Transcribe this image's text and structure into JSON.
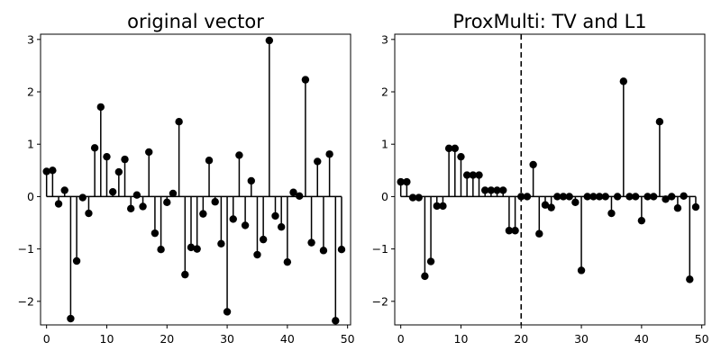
{
  "chart_data": [
    {
      "type": "stem",
      "title": "original vector",
      "xlabel": "",
      "ylabel": "",
      "xlim": [
        -1,
        50.5
      ],
      "ylim": [
        -2.45,
        3.1
      ],
      "xticks": [
        0,
        10,
        20,
        30,
        40,
        50
      ],
      "yticks": [
        -2,
        -1,
        0,
        1,
        2,
        3
      ],
      "grid": false,
      "baseline": 0,
      "marker_color": "#000000",
      "x": [
        0,
        1,
        2,
        3,
        4,
        5,
        6,
        7,
        8,
        9,
        10,
        11,
        12,
        13,
        14,
        15,
        16,
        17,
        18,
        19,
        20,
        21,
        22,
        23,
        24,
        25,
        26,
        27,
        28,
        29,
        30,
        31,
        32,
        33,
        34,
        35,
        36,
        37,
        38,
        39,
        40,
        41,
        42,
        43,
        44,
        45,
        46,
        47,
        48,
        49
      ],
      "values": [
        0.48,
        0.5,
        -0.14,
        0.12,
        -2.33,
        -1.23,
        -0.02,
        -0.32,
        0.93,
        1.71,
        0.76,
        0.09,
        0.47,
        0.71,
        -0.23,
        0.03,
        -0.19,
        0.85,
        -0.7,
        -1.01,
        -0.11,
        0.06,
        1.43,
        -1.49,
        -0.97,
        -1.0,
        -0.33,
        0.69,
        -0.1,
        -0.9,
        -2.2,
        -0.43,
        0.79,
        -0.55,
        0.3,
        -1.11,
        -0.82,
        2.98,
        -0.37,
        -0.58,
        -1.25,
        0.08,
        0.01,
        2.23,
        -0.88,
        0.67,
        -1.03,
        0.81,
        -2.37,
        -1.01
      ]
    },
    {
      "type": "stem",
      "title": "ProxMulti: TV and L1",
      "xlabel": "",
      "ylabel": "",
      "xlim": [
        -1,
        50.5
      ],
      "ylim": [
        -2.45,
        3.1
      ],
      "xticks": [
        0,
        10,
        20,
        30,
        40,
        50
      ],
      "yticks": [
        -2,
        -1,
        0,
        1,
        2,
        3
      ],
      "grid": false,
      "baseline": 0,
      "vline_x": 20,
      "marker_color": "#000000",
      "x": [
        0,
        1,
        2,
        3,
        4,
        5,
        6,
        7,
        8,
        9,
        10,
        11,
        12,
        13,
        14,
        15,
        16,
        17,
        18,
        19,
        20,
        21,
        22,
        23,
        24,
        25,
        26,
        27,
        28,
        29,
        30,
        31,
        32,
        33,
        34,
        35,
        36,
        37,
        38,
        39,
        40,
        41,
        42,
        43,
        44,
        45,
        46,
        47,
        48,
        49
      ],
      "values": [
        0.28,
        0.28,
        -0.02,
        -0.02,
        -1.52,
        -1.24,
        -0.18,
        -0.18,
        0.92,
        0.92,
        0.76,
        0.41,
        0.41,
        0.41,
        0.12,
        0.12,
        0.12,
        0.12,
        -0.65,
        -0.65,
        0.0,
        0.0,
        0.61,
        -0.71,
        -0.16,
        -0.21,
        0.0,
        0.0,
        0.0,
        -0.11,
        -1.41,
        0.0,
        0.0,
        0.0,
        0.0,
        -0.32,
        0.0,
        2.2,
        0.0,
        0.0,
        -0.46,
        0.0,
        0.0,
        1.43,
        -0.05,
        0.0,
        -0.22,
        0.01,
        -1.58,
        -0.2
      ]
    }
  ]
}
